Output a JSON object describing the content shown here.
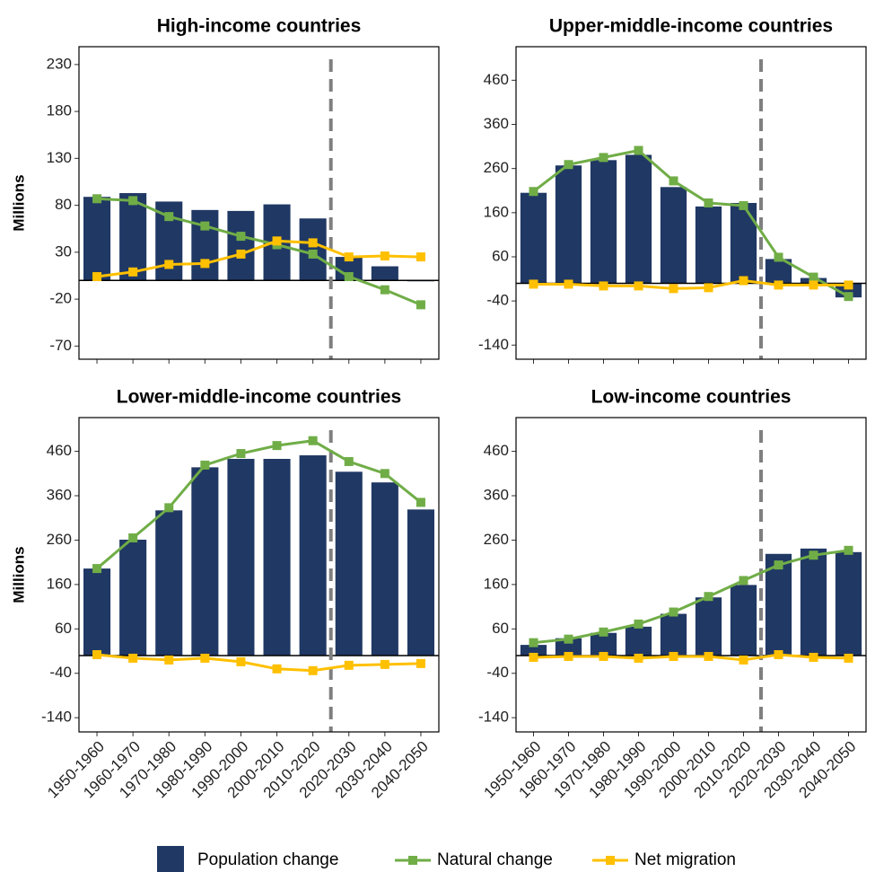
{
  "chart_data": [
    {
      "type": "bar",
      "title": "High-income countries",
      "y_label": "Millions",
      "categories": [
        null,
        null,
        null,
        null,
        null,
        null,
        null,
        null,
        null,
        null
      ],
      "ylim": [
        -84,
        249
      ],
      "yticks": [
        -70,
        -20,
        30,
        80,
        130,
        180,
        230
      ],
      "series": [
        {
          "name": "Population change",
          "type": "bar",
          "color": "#203864",
          "values": [
            89,
            93,
            84,
            75,
            74,
            81,
            66,
            25,
            15,
            -1
          ]
        },
        {
          "name": "Natural change",
          "type": "line",
          "color": "#70ad47",
          "values": [
            87,
            85,
            68,
            58,
            47,
            38,
            28,
            4,
            -10,
            -26
          ]
        },
        {
          "name": "Net migration",
          "type": "line",
          "color": "#ffc000",
          "values": [
            4,
            9,
            17,
            18,
            28,
            42,
            40,
            25,
            26,
            25
          ]
        }
      ]
    },
    {
      "type": "bar",
      "title": "Upper-middle-income countries",
      "categories": [
        null,
        null,
        null,
        null,
        null,
        null,
        null,
        null,
        null,
        null
      ],
      "ylim": [
        -172,
        536
      ],
      "yticks": [
        -140,
        -40,
        60,
        160,
        260,
        360,
        460
      ],
      "series": [
        {
          "name": "Population change",
          "type": "bar",
          "color": "#203864",
          "values": [
            205,
            267,
            279,
            291,
            218,
            174,
            182,
            55,
            12,
            -32
          ]
        },
        {
          "name": "Natural change",
          "type": "line",
          "color": "#70ad47",
          "values": [
            208,
            269,
            285,
            301,
            232,
            182,
            176,
            59,
            14,
            -30
          ]
        },
        {
          "name": "Net migration",
          "type": "line",
          "color": "#ffc000",
          "values": [
            -2,
            -2,
            -6,
            -6,
            -12,
            -10,
            6,
            -4,
            -4,
            -4
          ]
        }
      ]
    },
    {
      "type": "bar",
      "title": "Lower-middle-income countries",
      "y_label": "Millions",
      "categories": [
        "1950-1960",
        "1960-1970",
        "1970-1980",
        "1980-1990",
        "1990-2000",
        "2000-2010",
        "2010-2020",
        "2020-2030",
        "2030-2040",
        "2040-2050"
      ],
      "ylim": [
        -172,
        536
      ],
      "yticks": [
        -140,
        -40,
        60,
        160,
        260,
        360,
        460
      ],
      "series": [
        {
          "name": "Population change",
          "type": "bar",
          "color": "#203864",
          "values": [
            196,
            261,
            327,
            424,
            443,
            443,
            451,
            414,
            390,
            329
          ]
        },
        {
          "name": "Natural change",
          "type": "line",
          "color": "#70ad47",
          "values": [
            196,
            265,
            333,
            429,
            455,
            473,
            484,
            437,
            410,
            345
          ]
        },
        {
          "name": "Net migration",
          "type": "line",
          "color": "#ffc000",
          "values": [
            2,
            -6,
            -10,
            -6,
            -14,
            -30,
            -34,
            -22,
            -20,
            -18
          ]
        }
      ]
    },
    {
      "type": "bar",
      "title": "Low-income countries",
      "categories": [
        "1950-1960",
        "1960-1970",
        "1970-1980",
        "1980-1990",
        "1990-2000",
        "2000-2010",
        "2010-2020",
        "2020-2030",
        "2030-2040",
        "2040-2050"
      ],
      "ylim": [
        -172,
        536
      ],
      "yticks": [
        -140,
        -40,
        60,
        160,
        260,
        360,
        460
      ],
      "series": [
        {
          "name": "Population change",
          "type": "bar",
          "color": "#203864",
          "values": [
            24,
            39,
            51,
            65,
            94,
            131,
            159,
            229,
            241,
            233
          ]
        },
        {
          "name": "Natural change",
          "type": "line",
          "color": "#70ad47",
          "values": [
            29,
            37,
            53,
            71,
            98,
            133,
            169,
            204,
            226,
            237
          ]
        },
        {
          "name": "Net migration",
          "type": "line",
          "color": "#ffc000",
          "values": [
            -4,
            -2,
            -2,
            -6,
            -2,
            -2,
            -10,
            2,
            -4,
            -6
          ]
        }
      ]
    }
  ]
}
